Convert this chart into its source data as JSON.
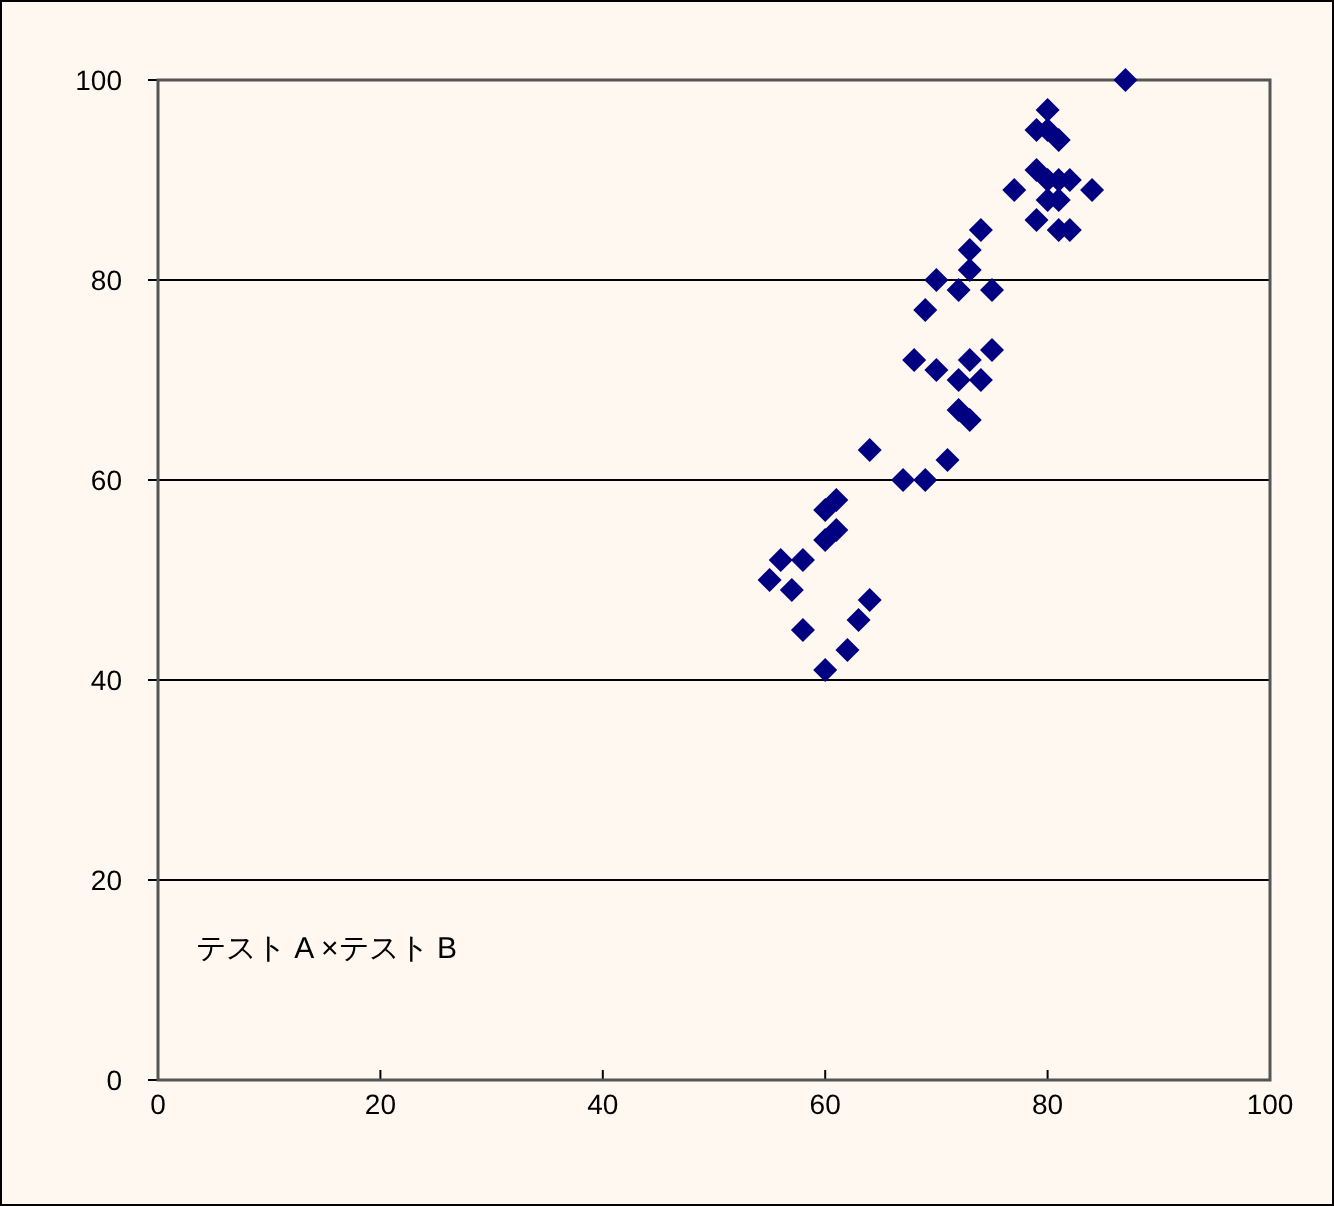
{
  "chart_data": {
    "type": "scatter",
    "color": "#000080",
    "marker": "diamond",
    "grid": "y",
    "xlim": [
      0,
      100
    ],
    "ylim": [
      0,
      100
    ],
    "xticks": [
      0,
      20,
      40,
      60,
      80,
      100
    ],
    "yticks": [
      0,
      20,
      40,
      60,
      80,
      100
    ],
    "annotations": [
      "テスト A ×テスト B"
    ],
    "x": [
      55,
      56,
      57,
      58,
      58,
      60,
      60,
      60,
      61,
      61,
      62,
      63,
      64,
      64,
      67,
      68,
      69,
      69,
      70,
      70,
      71,
      72,
      72,
      72,
      73,
      73,
      73,
      73,
      74,
      74,
      75,
      75,
      77,
      79,
      79,
      79,
      80,
      80,
      80,
      80,
      81,
      81,
      81,
      81,
      82,
      82,
      84,
      87
    ],
    "values": [
      50,
      52,
      49,
      52,
      45,
      41,
      57,
      54,
      58,
      55,
      43,
      46,
      48,
      63,
      60,
      72,
      60,
      77,
      71,
      80,
      62,
      79,
      67,
      70,
      66,
      72,
      81,
      83,
      85,
      70,
      73,
      79,
      89,
      91,
      95,
      86,
      95,
      97,
      88,
      90,
      94,
      88,
      90,
      85,
      85,
      90,
      89,
      100
    ]
  }
}
